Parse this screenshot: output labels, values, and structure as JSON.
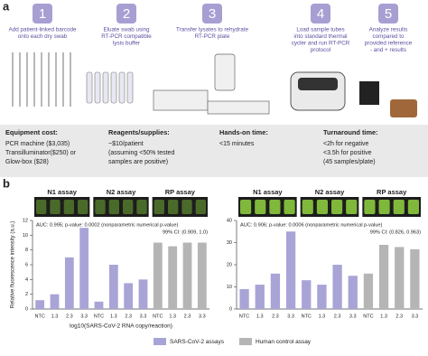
{
  "panel_a": {
    "letter": "a",
    "steps": [
      {
        "number": "1",
        "lines": [
          "Add patient-linked barcode",
          "onto each dry swab"
        ]
      },
      {
        "number": "2",
        "lines": [
          "Eluate swab using",
          "RT-PCR compatible",
          "lysis buffer"
        ]
      },
      {
        "number": "3",
        "lines": [
          "Transfer lysates to rehydrate",
          "RT-PCR plate"
        ]
      },
      {
        "number": "4",
        "lines": [
          "Load sample tubes",
          "into standard thermal",
          "cycler and run RT-PCR",
          "protocol"
        ]
      },
      {
        "number": "5",
        "lines": [
          "Analyze results",
          "compared to",
          "provided reference",
          "- and + results"
        ]
      }
    ],
    "info": [
      {
        "heading": "Equipment cost:",
        "lines": [
          "PCR machine ($3,035)",
          "Transilluminator($250) or",
          "Glow-box ($28)"
        ]
      },
      {
        "heading": "Reagents/supplies:",
        "lines": [
          "~$10/patient",
          "(assuming <50% tested",
          "samples are positive)"
        ]
      },
      {
        "heading": "Hands-on time:",
        "lines": [
          "<15 minutes"
        ]
      },
      {
        "heading": "Turnaround time:",
        "lines": [
          "<2h for negative",
          "<3.5h for positive",
          "(45 samples/plate)"
        ]
      }
    ]
  },
  "panel_b": {
    "letter": "b"
  },
  "chart_data": [
    {
      "type": "bar",
      "groups": [
        "N1 assay",
        "N2 assay",
        "RP assay"
      ],
      "categories": [
        "NTC",
        "1.3",
        "2.3",
        "3.3",
        "NTC",
        "1.3",
        "2.3",
        "3.3",
        "NTC",
        "1.3",
        "2.3",
        "3.3"
      ],
      "series": [
        {
          "name": "SARS-CoV-2 assays",
          "color": "#a9a4d6",
          "values": [
            1.2,
            2,
            7,
            11,
            1,
            6,
            3.5,
            4,
            null,
            null,
            null,
            null
          ]
        },
        {
          "name": "Human control assay",
          "color": "#b5b5b5",
          "values": [
            null,
            null,
            null,
            null,
            null,
            null,
            null,
            null,
            9,
            8.5,
            9,
            9
          ]
        }
      ],
      "annotations": [
        "AUC: 0.995; p-value: 0.0002 (nonparametric numerical p-value)",
        "99% CI: (0.909, 1.0)"
      ],
      "xlabel": "log10(SARS-CoV-2 RNA copy/reaction)",
      "ylabel": "Relative fluorescence intensity (a.u.)",
      "ylim": [
        0,
        12
      ],
      "yticks": [
        0,
        2,
        4,
        6,
        8,
        10,
        12
      ]
    },
    {
      "type": "bar",
      "groups": [
        "N1 assay",
        "N2 assay",
        "RP assay"
      ],
      "categories": [
        "NTC",
        "1.3",
        "2.3",
        "3.3",
        "NTC",
        "1.3",
        "2.3",
        "3.3",
        "NTC",
        "1.3",
        "2.3",
        "3.3"
      ],
      "series": [
        {
          "color": "#a9a4d6",
          "values": [
            9,
            11,
            16,
            35,
            13,
            11,
            20,
            15,
            null,
            null,
            null,
            null
          ]
        },
        {
          "color": "#b5b5b5",
          "values": [
            null,
            null,
            null,
            null,
            null,
            null,
            null,
            null,
            16,
            29,
            28,
            27
          ]
        }
      ],
      "annotations": [
        "AUC: 0.906; p-value: 0.0006 (nonparametric numerical p-value)",
        "99% CI: (0.826, 0.963)"
      ],
      "ylim": [
        0,
        40
      ],
      "yticks": [
        0,
        10,
        20,
        30,
        40
      ]
    }
  ]
}
